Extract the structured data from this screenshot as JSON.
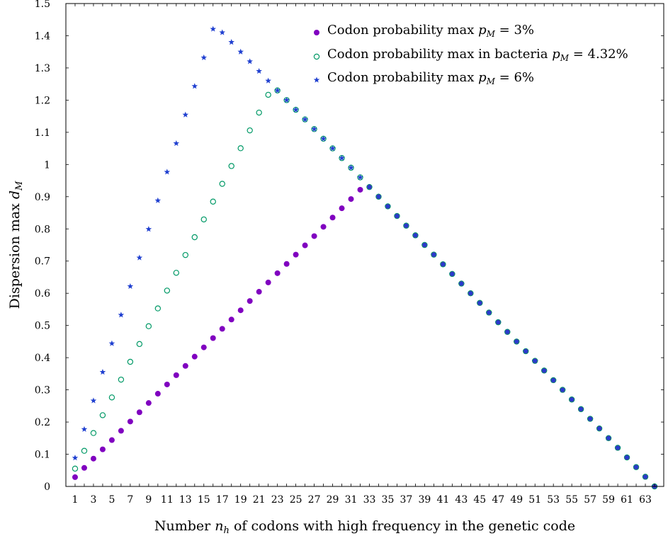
{
  "chart_data": {
    "type": "scatter",
    "title": "",
    "xlabel": "Number n_h of codons with high frequency in the genetic code",
    "xlabel_parts": {
      "pre": "Number ",
      "sym": "n",
      "sub": "h",
      "post": " of codons with high frequency in the genetic code"
    },
    "ylabel": "Dispersion max d_M",
    "ylabel_parts": {
      "pre": "Dispersion max ",
      "sym": "d",
      "sub": "M"
    },
    "xlim": [
      0,
      65
    ],
    "ylim": [
      0,
      1.5
    ],
    "x_ticks": [
      1,
      3,
      5,
      7,
      9,
      11,
      13,
      15,
      17,
      19,
      21,
      23,
      25,
      27,
      29,
      31,
      33,
      35,
      37,
      39,
      41,
      43,
      45,
      47,
      49,
      51,
      53,
      55,
      57,
      59,
      61,
      63
    ],
    "y_ticks": [
      0,
      0.1,
      0.2,
      0.3,
      0.4,
      0.5,
      0.6,
      0.7,
      0.8,
      0.9,
      1,
      1.1,
      1.2,
      1.3,
      1.4,
      1.5
    ],
    "y_tick_labels": [
      "0",
      "0.1",
      "0.2",
      "0.3",
      "0.4",
      "0.5",
      "0.6",
      "0.7",
      "0.8",
      "0.9",
      "1",
      "1.1",
      "1.2",
      "1.3",
      "1.4",
      "1.5"
    ],
    "legend_position": "top-right",
    "grid": false,
    "series": [
      {
        "name": "Codon probability max p_M = 3%",
        "label_parts": {
          "pre": "Codon probability max ",
          "sym": "p",
          "sub": "M",
          "post": " = 3%"
        },
        "marker": "filled-circle",
        "color": "#8000c0",
        "p": 0.03,
        "x": [
          1,
          2,
          3,
          4,
          5,
          6,
          7,
          8,
          9,
          10,
          11,
          12,
          13,
          14,
          15,
          16,
          17,
          18,
          19,
          20,
          21,
          22,
          23,
          24,
          25,
          26,
          27,
          28,
          29,
          30,
          31,
          32,
          33,
          34,
          35,
          36,
          37,
          38,
          39,
          40,
          41,
          42,
          43,
          44,
          45,
          46,
          47,
          48,
          49,
          50,
          51,
          52,
          53,
          54,
          55,
          56,
          57,
          58,
          59,
          60,
          61,
          62,
          63,
          64
        ],
        "y": [
          0.0288,
          0.0576,
          0.0864,
          0.1152,
          0.144,
          0.1728,
          0.2016,
          0.2304,
          0.2592,
          0.288,
          0.3168,
          0.3456,
          0.3744,
          0.4032,
          0.432,
          0.4608,
          0.4896,
          0.5184,
          0.5472,
          0.576,
          0.6048,
          0.6336,
          0.6624,
          0.6912,
          0.72,
          0.7488,
          0.7776,
          0.8064,
          0.8352,
          0.864,
          0.8928,
          0.9216,
          0.93,
          0.9,
          0.87,
          0.84,
          0.81,
          0.78,
          0.75,
          0.72,
          0.69,
          0.66,
          0.63,
          0.6,
          0.57,
          0.54,
          0.51,
          0.48,
          0.45,
          0.42,
          0.39,
          0.36,
          0.33,
          0.3,
          0.27,
          0.24,
          0.21,
          0.18,
          0.15,
          0.12,
          0.09,
          0.06,
          0.03,
          0.0
        ]
      },
      {
        "name": "Codon probability max in bacteria p_M = 4.32%",
        "label_parts": {
          "pre": "Codon probability max in bacteria ",
          "sym": "p",
          "sub": "M",
          "post": " = 4.32%"
        },
        "marker": "open-circle",
        "color": "#009966",
        "p": 0.0432,
        "x": [
          1,
          2,
          3,
          4,
          5,
          6,
          7,
          8,
          9,
          10,
          11,
          12,
          13,
          14,
          15,
          16,
          17,
          18,
          19,
          20,
          21,
          22,
          23,
          24,
          25,
          26,
          27,
          28,
          29,
          30,
          31,
          32,
          33,
          34,
          35,
          36,
          37,
          38,
          39,
          40,
          41,
          42,
          43,
          44,
          45,
          46,
          47,
          48,
          49,
          50,
          51,
          52,
          53,
          54,
          55,
          56,
          57,
          58,
          59,
          60,
          61,
          62,
          63,
          64
        ],
        "y": [
          0.0553,
          0.1106,
          0.1659,
          0.2212,
          0.2765,
          0.3318,
          0.3871,
          0.4424,
          0.4977,
          0.553,
          0.6083,
          0.6636,
          0.7189,
          0.7742,
          0.8294,
          0.8847,
          0.94,
          0.9953,
          1.0506,
          1.1059,
          1.1612,
          1.2165,
          1.23,
          1.2,
          1.17,
          1.14,
          1.11,
          1.08,
          1.05,
          1.02,
          0.99,
          0.96,
          0.93,
          0.9,
          0.87,
          0.84,
          0.81,
          0.78,
          0.75,
          0.72,
          0.69,
          0.66,
          0.63,
          0.6,
          0.57,
          0.54,
          0.51,
          0.48,
          0.45,
          0.42,
          0.39,
          0.36,
          0.33,
          0.3,
          0.27,
          0.24,
          0.21,
          0.18,
          0.15,
          0.12,
          0.09,
          0.06,
          0.03,
          0.0
        ]
      },
      {
        "name": "Codon probability max p_M = 6%",
        "label_parts": {
          "pre": "Codon probability max ",
          "sym": "p",
          "sub": "M",
          "post": " = 6%"
        },
        "marker": "star",
        "color": "#2040d0",
        "p": 0.06,
        "x": [
          1,
          2,
          3,
          4,
          5,
          6,
          7,
          8,
          9,
          10,
          11,
          12,
          13,
          14,
          15,
          16,
          17,
          18,
          19,
          20,
          21,
          22,
          23,
          24,
          25,
          26,
          27,
          28,
          29,
          30,
          31,
          32,
          33,
          34,
          35,
          36,
          37,
          38,
          39,
          40,
          41,
          42,
          43,
          44,
          45,
          46,
          47,
          48,
          49,
          50,
          51,
          52,
          53,
          54,
          55,
          56,
          57,
          58,
          59,
          60,
          61,
          62,
          63,
          64
        ],
        "y": [
          0.0888,
          0.1776,
          0.2664,
          0.3552,
          0.444,
          0.5328,
          0.6216,
          0.7104,
          0.7992,
          0.888,
          0.9768,
          1.0656,
          1.1544,
          1.2432,
          1.332,
          1.4208,
          1.41,
          1.38,
          1.35,
          1.32,
          1.29,
          1.26,
          1.23,
          1.2,
          1.17,
          1.14,
          1.11,
          1.08,
          1.05,
          1.02,
          0.99,
          0.96,
          0.93,
          0.9,
          0.87,
          0.84,
          0.81,
          0.78,
          0.75,
          0.72,
          0.69,
          0.66,
          0.63,
          0.6,
          0.57,
          0.54,
          0.51,
          0.48,
          0.45,
          0.42,
          0.39,
          0.36,
          0.33,
          0.3,
          0.27,
          0.24,
          0.21,
          0.18,
          0.15,
          0.12,
          0.09,
          0.06,
          0.03,
          0.0
        ]
      }
    ]
  }
}
